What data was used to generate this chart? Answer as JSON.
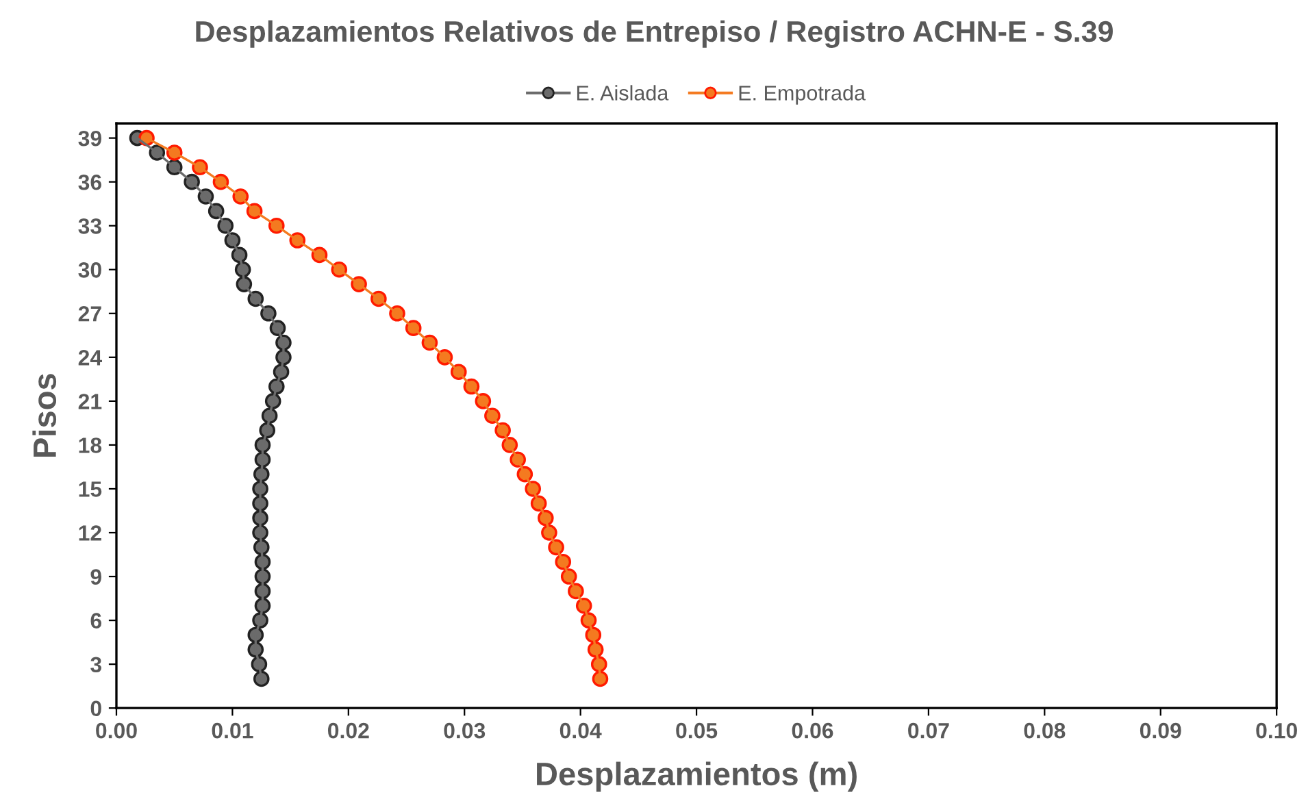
{
  "chart_data": {
    "type": "line",
    "title": "Desplazamientos Relativos de Entrepiso / Registro ACHN-E - S.39",
    "xlabel": "Desplazamientos (m)",
    "ylabel": "Pisos",
    "xlim": [
      0,
      0.1
    ],
    "ylim": [
      0,
      40
    ],
    "xticks": [
      {
        "value": 0,
        "label": "0.00"
      },
      {
        "value": 0.01,
        "label": "0.01"
      },
      {
        "value": 0.02,
        "label": "0.02"
      },
      {
        "value": 0.03,
        "label": "0.03"
      },
      {
        "value": 0.04,
        "label": "0.04"
      },
      {
        "value": 0.05,
        "label": "0.05"
      },
      {
        "value": 0.06,
        "label": "0.06"
      },
      {
        "value": 0.07,
        "label": "0.07"
      },
      {
        "value": 0.08,
        "label": "0.08"
      },
      {
        "value": 0.09,
        "label": "0.09"
      },
      {
        "value": 0.1,
        "label": "0.10"
      }
    ],
    "yticks": [
      0,
      3,
      6,
      9,
      12,
      15,
      18,
      21,
      24,
      27,
      30,
      33,
      36,
      39
    ],
    "marker": "circle",
    "line_style": "solid",
    "grid": false,
    "legend": "top",
    "series": [
      {
        "name": "E. Aislada",
        "color": "#6b6b6b",
        "x": [
          0.0018,
          0.0035,
          0.005,
          0.0065,
          0.0077,
          0.0086,
          0.0094,
          0.01,
          0.0106,
          0.0109,
          0.011,
          0.012,
          0.0131,
          0.0139,
          0.0144,
          0.0144,
          0.0142,
          0.0138,
          0.0135,
          0.0132,
          0.013,
          0.0126,
          0.0126,
          0.0125,
          0.0124,
          0.0124,
          0.0124,
          0.0124,
          0.0125,
          0.0126,
          0.0126,
          0.0126,
          0.0126,
          0.0124,
          0.012,
          0.012,
          0.0123,
          0.0125
        ],
        "values": [
          39,
          38,
          37,
          36,
          35,
          34,
          33,
          32,
          31,
          30,
          29,
          28,
          27,
          26,
          25,
          24,
          23,
          22,
          21,
          20,
          19,
          18,
          17,
          16,
          15,
          14,
          13,
          12,
          11,
          10,
          9,
          8,
          7,
          6,
          5,
          4,
          3,
          2
        ]
      },
      {
        "name": "E. Empotrada",
        "color": "#f47a20",
        "x": [
          0.0026,
          0.005,
          0.0072,
          0.009,
          0.0107,
          0.0119,
          0.0138,
          0.0156,
          0.0175,
          0.0192,
          0.0209,
          0.0226,
          0.0242,
          0.0256,
          0.027,
          0.0283,
          0.0295,
          0.0306,
          0.0316,
          0.0324,
          0.0333,
          0.0339,
          0.0346,
          0.0352,
          0.0359,
          0.0364,
          0.037,
          0.0373,
          0.0379,
          0.0385,
          0.039,
          0.0396,
          0.0403,
          0.0407,
          0.0411,
          0.0413,
          0.0416,
          0.0417
        ],
        "values": [
          39,
          38,
          37,
          36,
          35,
          34,
          33,
          32,
          31,
          30,
          29,
          28,
          27,
          26,
          25,
          24,
          23,
          22,
          21,
          20,
          19,
          18,
          17,
          16,
          15,
          14,
          13,
          12,
          11,
          10,
          9,
          8,
          7,
          6,
          5,
          4,
          3,
          2
        ]
      }
    ]
  }
}
